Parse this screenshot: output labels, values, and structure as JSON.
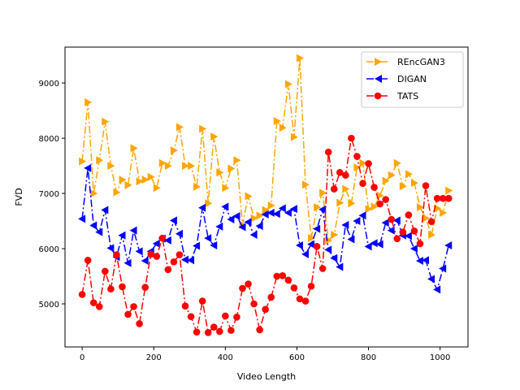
{
  "chart_data": {
    "type": "line",
    "title": "",
    "xlabel": "Video Length",
    "ylabel": "FVD",
    "xlim": [
      -48,
      1078
    ],
    "ylim": [
      4220,
      9650
    ],
    "xticks": [
      0,
      200,
      400,
      600,
      800,
      1000
    ],
    "yticks": [
      5000,
      6000,
      7000,
      8000,
      9000
    ],
    "grid": false,
    "legend_position": "top-right",
    "x": [
      0,
      16,
      32,
      48,
      64,
      80,
      96,
      112,
      128,
      144,
      160,
      176,
      192,
      208,
      224,
      240,
      256,
      272,
      288,
      304,
      320,
      336,
      352,
      368,
      384,
      400,
      416,
      432,
      448,
      464,
      480,
      496,
      512,
      528,
      544,
      560,
      576,
      592,
      608,
      624,
      640,
      656,
      672,
      688,
      704,
      720,
      736,
      752,
      768,
      784,
      800,
      816,
      832,
      848,
      864,
      880,
      896,
      912,
      928,
      944,
      960,
      976,
      992,
      1008,
      1024
    ],
    "series": [
      {
        "name": "REncGAN3",
        "color": "#ffa500",
        "marker": "triangle-right",
        "values": [
          7580,
          8650,
          7000,
          7600,
          8300,
          7500,
          7020,
          7250,
          7150,
          7820,
          7220,
          7250,
          7300,
          7100,
          7550,
          7500,
          7780,
          8200,
          7500,
          7500,
          7120,
          8170,
          6820,
          8030,
          7380,
          7100,
          7450,
          7600,
          6430,
          6950,
          6550,
          6600,
          6700,
          6780,
          8310,
          8190,
          8980,
          8020,
          9450,
          7160,
          6190,
          6750,
          7010,
          6150,
          6250,
          6830,
          7080,
          6820,
          7470,
          7550,
          6720,
          6760,
          6960,
          7230,
          7330,
          7550,
          7130,
          7350,
          7190,
          6750,
          6550,
          6250,
          6730,
          6650,
          7050
        ]
      },
      {
        "name": "DIGAN",
        "color": "#0000ff",
        "marker": "triangle-left",
        "values": [
          6540,
          7460,
          6420,
          6300,
          6700,
          6010,
          5850,
          6240,
          5740,
          6330,
          5950,
          5780,
          5950,
          6090,
          6180,
          6150,
          6510,
          6270,
          5800,
          5790,
          6050,
          6740,
          6190,
          6060,
          6400,
          6760,
          6530,
          6590,
          6390,
          6480,
          6250,
          6410,
          6620,
          6650,
          6630,
          6730,
          6650,
          6720,
          6060,
          5900,
          6080,
          6360,
          6710,
          5980,
          5830,
          5670,
          6430,
          6170,
          6500,
          6600,
          6040,
          6100,
          6080,
          6470,
          6330,
          6510,
          6240,
          6230,
          6000,
          5780,
          5790,
          5450,
          5260,
          5640,
          6060
        ]
      },
      {
        "name": "TATS",
        "color": "#ff0000",
        "marker": "circle",
        "values": [
          5170,
          5790,
          5020,
          4950,
          5590,
          5270,
          5890,
          5310,
          4810,
          4950,
          4640,
          5300,
          5900,
          5860,
          6190,
          5620,
          5760,
          5890,
          4960,
          4770,
          4490,
          5050,
          4480,
          4580,
          4500,
          4780,
          4520,
          4760,
          5280,
          5360,
          5000,
          4530,
          4900,
          5120,
          5500,
          5510,
          5430,
          5290,
          5090,
          5050,
          5320,
          6040,
          5640,
          7750,
          7080,
          7380,
          7330,
          8000,
          7670,
          7180,
          7540,
          7110,
          6810,
          6890,
          6530,
          6180,
          6300,
          6610,
          6320,
          6090,
          7140,
          6490,
          6910,
          6910,
          6910
        ]
      }
    ]
  }
}
